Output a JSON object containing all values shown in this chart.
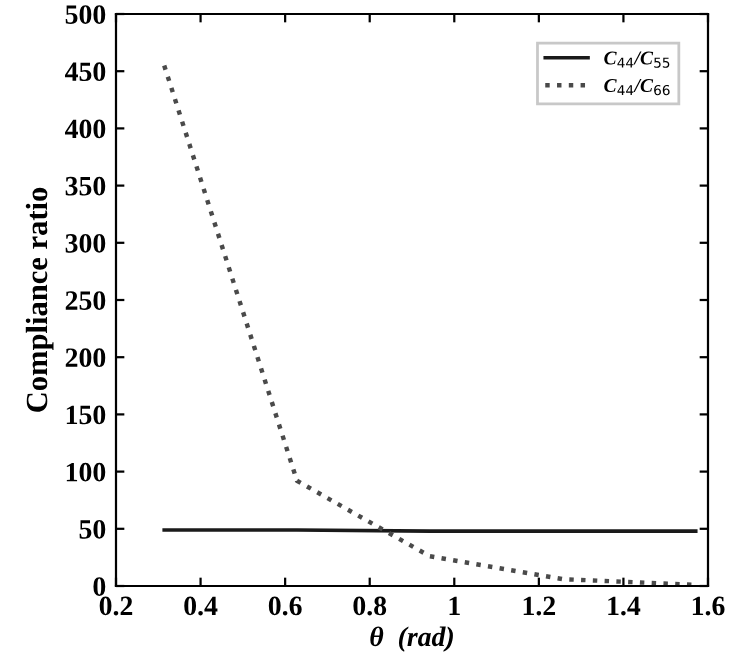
{
  "chart_data": {
    "type": "line",
    "xlabel": "θ  (rad)",
    "ylabel": "Compliance ratio",
    "x": [
      0.314,
      0.628,
      0.942,
      1.257,
      1.571
    ],
    "series": [
      {
        "name": "C$_{44}$/C$_{55}$",
        "color": "#1a1a1a",
        "values": [
          49,
          49,
          48,
          48,
          48
        ],
        "line_style": "solid"
      },
      {
        "name": "C$_{44}$/C$_{66}$",
        "color": "#4a4a4a",
        "values": [
          455,
          92,
          26,
          6,
          1
        ],
        "line_style": "dotted"
      }
    ],
    "xlim": [
      0.2,
      1.6
    ],
    "xticks": [
      0.2,
      0.4,
      0.6,
      0.8,
      1,
      1.2,
      1.4,
      1.6
    ],
    "ylim": [
      0,
      500
    ],
    "yticks": [
      0,
      50,
      100,
      150,
      200,
      250,
      300,
      350,
      400,
      450,
      500
    ],
    "grid": false,
    "legend": "top right",
    "marker": "none"
  }
}
